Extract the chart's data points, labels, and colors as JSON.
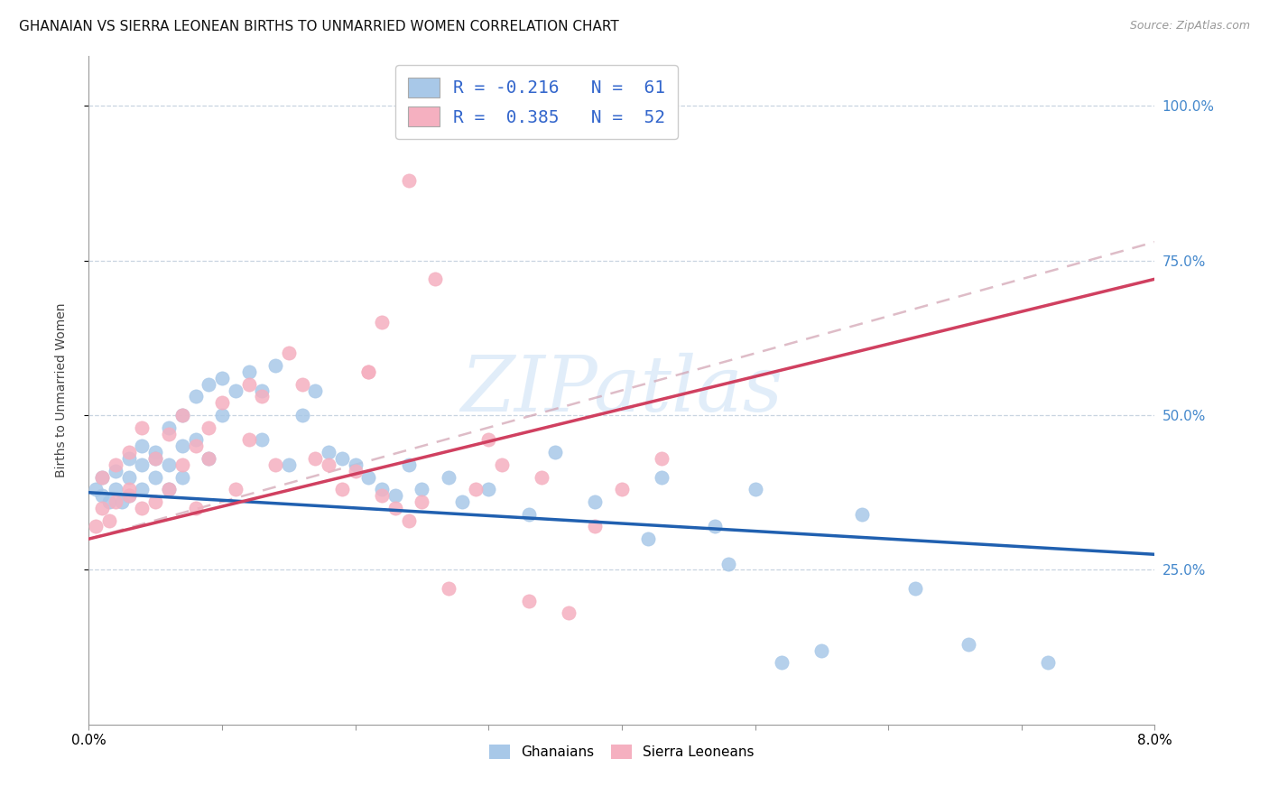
{
  "title": "GHANAIAN VS SIERRA LEONEAN BIRTHS TO UNMARRIED WOMEN CORRELATION CHART",
  "source": "Source: ZipAtlas.com",
  "ylabel": "Births to Unmarried Women",
  "xmin": 0.0,
  "xmax": 0.08,
  "ymin": 0.0,
  "ymax": 1.08,
  "yticks": [
    0.25,
    0.5,
    0.75,
    1.0
  ],
  "ytick_labels": [
    "25.0%",
    "50.0%",
    "75.0%",
    "100.0%"
  ],
  "watermark": "ZIPatlas",
  "color_ghanaian": "#a8c8e8",
  "color_sl": "#f5b0c0",
  "color_ghanaian_line": "#2060b0",
  "color_sl_line": "#d04060",
  "legend_text_color": "#3366cc",
  "ghanaian_x": [
    0.0005,
    0.001,
    0.001,
    0.0015,
    0.002,
    0.002,
    0.0025,
    0.003,
    0.003,
    0.003,
    0.004,
    0.004,
    0.004,
    0.005,
    0.005,
    0.005,
    0.006,
    0.006,
    0.006,
    0.007,
    0.007,
    0.007,
    0.008,
    0.008,
    0.009,
    0.009,
    0.01,
    0.01,
    0.011,
    0.012,
    0.013,
    0.013,
    0.014,
    0.015,
    0.016,
    0.017,
    0.018,
    0.019,
    0.02,
    0.021,
    0.022,
    0.023,
    0.024,
    0.025,
    0.027,
    0.028,
    0.03,
    0.033,
    0.035,
    0.038,
    0.042,
    0.043,
    0.047,
    0.048,
    0.05,
    0.052,
    0.055,
    0.058,
    0.062,
    0.066,
    0.072
  ],
  "ghanaian_y": [
    0.38,
    0.4,
    0.37,
    0.36,
    0.38,
    0.41,
    0.36,
    0.4,
    0.43,
    0.37,
    0.42,
    0.38,
    0.45,
    0.44,
    0.4,
    0.43,
    0.48,
    0.42,
    0.38,
    0.5,
    0.45,
    0.4,
    0.46,
    0.53,
    0.55,
    0.43,
    0.56,
    0.5,
    0.54,
    0.57,
    0.46,
    0.54,
    0.58,
    0.42,
    0.5,
    0.54,
    0.44,
    0.43,
    0.42,
    0.4,
    0.38,
    0.37,
    0.42,
    0.38,
    0.4,
    0.36,
    0.38,
    0.34,
    0.44,
    0.36,
    0.3,
    0.4,
    0.32,
    0.26,
    0.38,
    0.1,
    0.12,
    0.34,
    0.22,
    0.13,
    0.1
  ],
  "sl_x": [
    0.0005,
    0.001,
    0.001,
    0.0015,
    0.002,
    0.002,
    0.003,
    0.003,
    0.003,
    0.004,
    0.004,
    0.005,
    0.005,
    0.006,
    0.006,
    0.007,
    0.007,
    0.008,
    0.008,
    0.009,
    0.009,
    0.01,
    0.011,
    0.012,
    0.012,
    0.013,
    0.014,
    0.015,
    0.016,
    0.017,
    0.018,
    0.019,
    0.02,
    0.021,
    0.022,
    0.023,
    0.024,
    0.025,
    0.027,
    0.029,
    0.031,
    0.033,
    0.036,
    0.021,
    0.022,
    0.024,
    0.026,
    0.03,
    0.034,
    0.038,
    0.04,
    0.043
  ],
  "sl_y": [
    0.32,
    0.35,
    0.4,
    0.33,
    0.36,
    0.42,
    0.38,
    0.44,
    0.37,
    0.48,
    0.35,
    0.43,
    0.36,
    0.47,
    0.38,
    0.5,
    0.42,
    0.45,
    0.35,
    0.48,
    0.43,
    0.52,
    0.38,
    0.46,
    0.55,
    0.53,
    0.42,
    0.6,
    0.55,
    0.43,
    0.42,
    0.38,
    0.41,
    0.57,
    0.37,
    0.35,
    0.33,
    0.36,
    0.22,
    0.38,
    0.42,
    0.2,
    0.18,
    0.57,
    0.65,
    0.88,
    0.72,
    0.46,
    0.4,
    0.32,
    0.38,
    0.43
  ],
  "line_ghana_x0": 0.0,
  "line_ghana_y0": 0.375,
  "line_ghana_x1": 0.08,
  "line_ghana_y1": 0.275,
  "line_sl_x0": 0.0,
  "line_sl_y0": 0.3,
  "line_sl_x1": 0.08,
  "line_sl_y1": 0.72,
  "line_sl_dash_x0": 0.0,
  "line_sl_dash_y0": 0.3,
  "line_sl_dash_x1": 0.08,
  "line_sl_dash_y1": 0.78
}
